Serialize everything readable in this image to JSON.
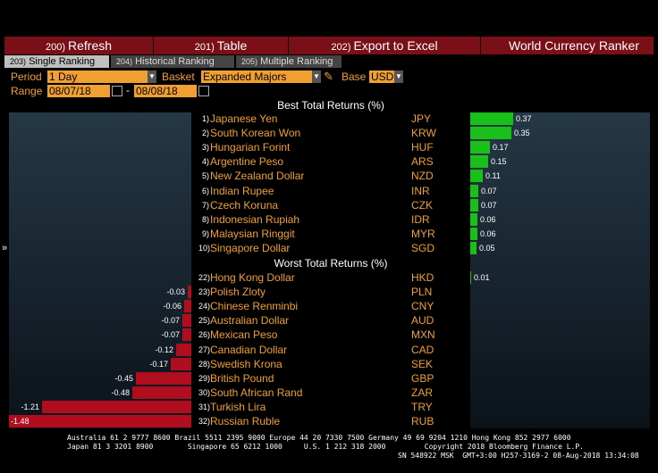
{
  "toolbar": [
    {
      "num": "200)",
      "label": "Refresh"
    },
    {
      "num": "201)",
      "label": "Table"
    },
    {
      "num": "202)",
      "label": "Export to Excel"
    }
  ],
  "app_title": "World Currency Ranker",
  "tabs": [
    {
      "num": "203)",
      "label": "Single Ranking",
      "active": true
    },
    {
      "num": "204)",
      "label": "Historical Ranking",
      "active": false
    },
    {
      "num": "205)",
      "label": "Multiple Ranking",
      "active": false
    }
  ],
  "controls": {
    "period_label": "Period",
    "period_value": "1 Day",
    "basket_label": "Basket",
    "basket_value": "Expanded Majors",
    "base_label": "Base",
    "base_value": "USD",
    "range_label": "Range",
    "range_start": "08/07/18",
    "range_sep": "-",
    "range_end": "08/08/18"
  },
  "best_title": "Best Total Returns (%)",
  "worst_title": "Worst Total Returns (%)",
  "best": [
    {
      "rank": "1)",
      "name": "Japanese Yen",
      "code": "JPY",
      "value": 0.37
    },
    {
      "rank": "2)",
      "name": "South Korean Won",
      "code": "KRW",
      "value": 0.35
    },
    {
      "rank": "3)",
      "name": "Hungarian Forint",
      "code": "HUF",
      "value": 0.17
    },
    {
      "rank": "4)",
      "name": "Argentine Peso",
      "code": "ARS",
      "value": 0.15
    },
    {
      "rank": "5)",
      "name": "New Zealand Dollar",
      "code": "NZD",
      "value": 0.11
    },
    {
      "rank": "6)",
      "name": "Indian Rupee",
      "code": "INR",
      "value": 0.07
    },
    {
      "rank": "7)",
      "name": "Czech Koruna",
      "code": "CZK",
      "value": 0.07
    },
    {
      "rank": "8)",
      "name": "Indonesian Rupiah",
      "code": "IDR",
      "value": 0.06
    },
    {
      "rank": "9)",
      "name": "Malaysian Ringgit",
      "code": "MYR",
      "value": 0.06
    },
    {
      "rank": "10)",
      "name": "Singapore Dollar",
      "code": "SGD",
      "value": 0.05
    }
  ],
  "worst": [
    {
      "rank": "22)",
      "name": "Hong Kong Dollar",
      "code": "HKD",
      "value": 0.01
    },
    {
      "rank": "23)",
      "name": "Polish Zloty",
      "code": "PLN",
      "value": -0.03
    },
    {
      "rank": "24)",
      "name": "Chinese Renminbi",
      "code": "CNY",
      "value": -0.06
    },
    {
      "rank": "25)",
      "name": "Australian Dollar",
      "code": "AUD",
      "value": -0.07
    },
    {
      "rank": "26)",
      "name": "Mexican Peso",
      "code": "MXN",
      "value": -0.07
    },
    {
      "rank": "27)",
      "name": "Canadian Dollar",
      "code": "CAD",
      "value": -0.12
    },
    {
      "rank": "28)",
      "name": "Swedish Krona",
      "code": "SEK",
      "value": -0.17
    },
    {
      "rank": "29)",
      "name": "British Pound",
      "code": "GBP",
      "value": -0.45
    },
    {
      "rank": "30)",
      "name": "South African Rand",
      "code": "ZAR",
      "value": -0.48
    },
    {
      "rank": "31)",
      "name": "Turkish Lira",
      "code": "TRY",
      "value": -1.21
    },
    {
      "rank": "32)",
      "name": "Russian Ruble",
      "code": "RUB",
      "value": -1.48
    }
  ],
  "scroll_arrow": "»",
  "footer_line1": "Australia 61 2 9777 8600 Brazil 5511 2395 9000 Europe 44 20 7330 7500 Germany 49 69 9204 1210 Hong Kong 852 2977 6000",
  "footer_line2": "Japan 81 3 3201 8900        Singapore 65 6212 1000     U.S. 1 212 318 2000         Copyright 2018 Bloomberg Finance L.P.",
  "footer_line3": "SN 548922 MSK  GMT+3:00 H257-3169-2 08-Aug-2018 13:34:08",
  "colors": {
    "bar_red": "#7a0f17",
    "orange": "#f0a030",
    "positive": "#19c019",
    "negative": "#b00e1e"
  }
}
